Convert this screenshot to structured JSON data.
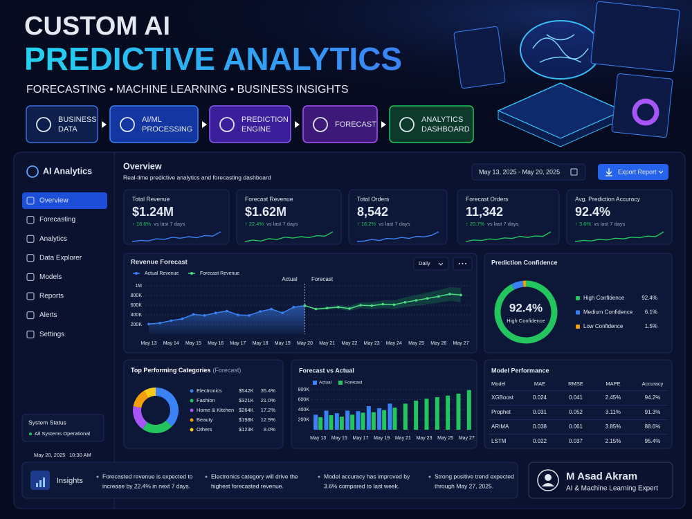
{
  "header": {
    "title": "CUSTOM AI",
    "subtitle": "PREDICTIVE ANALYTICS",
    "tagline": "FORECASTING  •  MACHINE LEARNING  •  BUSINESS INSIGHTS"
  },
  "pipeline": [
    [
      "BUSINESS",
      "DATA"
    ],
    [
      "AI/ML",
      "PROCESSING"
    ],
    [
      "PREDICTION",
      "ENGINE"
    ],
    [
      "FORECAST"
    ],
    [
      "ANALYTICS",
      "DASHBOARD"
    ]
  ],
  "sidebar": {
    "brand": "AI Analytics",
    "nav": [
      "Overview",
      "Forecasting",
      "Analytics",
      "Data Explorer",
      "Models",
      "Reports",
      "Alerts",
      "Settings"
    ],
    "active": 0,
    "status_title": "System Status",
    "status": "All Systems Operational",
    "date": "May 20, 2025",
    "time": "10:30 AM"
  },
  "overview": {
    "title": "Overview",
    "subtitle": "Real-time predictive analytics and forecasting dashboard",
    "date_range": "May 13, 2025 - May 20, 2025",
    "export": "Export Report"
  },
  "kpis": [
    {
      "label": "Total Revenue",
      "value": "$1.24M",
      "change": "↑ 18.6%",
      "note": "vs last 7 days",
      "color": "#3b82f6",
      "trend": [
        3,
        3.2,
        3.1,
        3.5,
        3.4,
        3.8,
        3.6,
        3.9,
        3.7,
        4.1,
        4.0,
        4.8
      ]
    },
    {
      "label": "Forecast Revenue",
      "value": "$1.62M",
      "change": "↑ 22.4%",
      "note": "vs last 7 days",
      "color": "#22c55e",
      "trend": [
        3,
        3.3,
        3.1,
        3.6,
        3.4,
        3.9,
        3.7,
        4.0,
        3.8,
        4.2,
        4.1,
        5.0
      ]
    },
    {
      "label": "Total Orders",
      "value": "8,542",
      "change": "↑ 16.2%",
      "note": "vs last 7 days",
      "color": "#3b82f6",
      "trend": [
        3,
        3.1,
        3.4,
        3.2,
        3.6,
        3.5,
        3.8,
        3.6,
        4.0,
        3.9,
        4.2,
        4.9
      ]
    },
    {
      "label": "Forecast Orders",
      "value": "11,342",
      "change": "↑ 20.7%",
      "note": "vs last 7 days",
      "color": "#22c55e",
      "trend": [
        3,
        3.3,
        3.2,
        3.5,
        3.4,
        3.7,
        3.6,
        4.0,
        3.8,
        4.1,
        4.0,
        4.9
      ]
    },
    {
      "label": "Avg. Prediction Accuracy",
      "value": "92.4%",
      "change": "↑ 3.6%",
      "note": "vs last 7 days",
      "color": "#22c55e",
      "trend": [
        3,
        3.2,
        3.1,
        3.4,
        3.3,
        3.6,
        3.5,
        3.8,
        3.7,
        4.0,
        3.9,
        4.8
      ]
    }
  ],
  "revenue_forecast": {
    "type": "line",
    "title": "Revenue Forecast",
    "period": "Daily",
    "annotations": [
      "Actual",
      "Forecast"
    ],
    "categories": [
      "May 13",
      null,
      "May 14",
      null,
      "May 15",
      null,
      "May 16",
      null,
      "May 17",
      null,
      "May 18",
      null,
      "May 19",
      null,
      "May 20",
      null,
      "May 21",
      null,
      "May 22",
      null,
      "May 23",
      null,
      "May 24",
      null,
      "May 25",
      null,
      "May 26",
      null,
      "May 27"
    ],
    "series": [
      {
        "name": "Actual Revenue",
        "color": "#3b82f6",
        "values": [
          210000,
          230000,
          280000,
          320000,
          410000,
          390000,
          440000,
          480000,
          400000,
          390000,
          470000,
          520000,
          440000,
          560000,
          590000,
          null,
          null,
          null,
          null,
          null,
          null,
          null,
          null,
          null,
          null,
          null,
          null,
          null,
          null
        ]
      },
      {
        "name": "Forecast Revenue",
        "color": "#4ade80",
        "values": [
          null,
          null,
          null,
          null,
          null,
          null,
          null,
          null,
          null,
          null,
          null,
          null,
          null,
          null,
          590000,
          520000,
          540000,
          560000,
          530000,
          600000,
          590000,
          620000,
          610000,
          660000,
          700000,
          740000,
          780000,
          830000,
          810000
        ]
      }
    ],
    "band": {
      "color": "#22c55e",
      "upper": [
        null,
        null,
        null,
        null,
        null,
        null,
        null,
        null,
        null,
        null,
        null,
        null,
        null,
        null,
        590000,
        540000,
        570000,
        600000,
        580000,
        660000,
        660000,
        700000,
        700000,
        760000,
        810000,
        860000,
        910000,
        970000,
        960000
      ],
      "lower": [
        null,
        null,
        null,
        null,
        null,
        null,
        null,
        null,
        null,
        null,
        null,
        null,
        null,
        null,
        590000,
        500000,
        510000,
        520000,
        480000,
        540000,
        520000,
        540000,
        520000,
        560000,
        590000,
        620000,
        650000,
        690000,
        660000
      ]
    },
    "ylim": [
      0,
      1000000
    ],
    "yticks": [
      {
        "value": 200000,
        "label": "200K"
      },
      {
        "value": 400000,
        "label": "400K"
      },
      {
        "value": 600000,
        "label": "600K"
      },
      {
        "value": 800000,
        "label": "800K"
      },
      {
        "value": 1000000,
        "label": "1M"
      }
    ],
    "grid": true
  },
  "confidence": {
    "type": "donut",
    "title": "Prediction Confidence",
    "center_value": "92.4%",
    "center_label": "High Confidence",
    "names": [
      "High Confidence",
      "Medium Confidence",
      "Low Confidence"
    ],
    "values": [
      92.4,
      6.1,
      1.5
    ],
    "value_labels": [
      "92.4%",
      "6.1%",
      "1.5%"
    ],
    "colors": [
      "#22c55e",
      "#3b82f6",
      "#f59e0b"
    ]
  },
  "top_categories": {
    "type": "donut",
    "title": "Top Performing Categories",
    "title_note": "(Forecast)",
    "names": [
      "Electronics",
      "Fashion",
      "Home & Kitchen",
      "Beauty",
      "Others"
    ],
    "revenue": [
      542000,
      321000,
      264000,
      198000,
      123000
    ],
    "revenue_labels": [
      "$542K",
      "$321K",
      "$264K",
      "$198K",
      "$123K"
    ],
    "values": [
      35.4,
      21.0,
      17.2,
      12.9,
      8.0
    ],
    "value_labels": [
      "35.4%",
      "21.0%",
      "17.2%",
      "12.9%",
      "8.0%"
    ],
    "colors": [
      "#3b82f6",
      "#22c55e",
      "#a855f7",
      "#f59e0b",
      "#facc15"
    ]
  },
  "forecast_vs_actual": {
    "type": "bar",
    "title": "Forecast vs Actual",
    "categories": [
      "May 13",
      null,
      "May 15",
      null,
      "May 17",
      null,
      "May 19",
      null,
      "May 21",
      null,
      "May 23",
      null,
      "May 25",
      null,
      "May 27"
    ],
    "series": [
      {
        "name": "Actual",
        "color": "#3b82f6",
        "values": [
          300000,
          380000,
          330000,
          380000,
          370000,
          470000,
          430000,
          520000,
          null,
          null,
          null,
          null,
          null,
          null,
          null
        ]
      },
      {
        "name": "Forecast",
        "color": "#22c55e",
        "values": [
          250000,
          290000,
          260000,
          300000,
          340000,
          350000,
          390000,
          440000,
          520000,
          580000,
          620000,
          650000,
          680000,
          720000,
          790000
        ]
      }
    ],
    "ylim": [
      0,
      800000
    ],
    "yticks": [
      {
        "value": 200000,
        "label": "200K"
      },
      {
        "value": 400000,
        "label": "400K"
      },
      {
        "value": 600000,
        "label": "600K"
      },
      {
        "value": 800000,
        "label": "800K"
      }
    ]
  },
  "model_performance": {
    "title": "Model Performance",
    "headers": [
      "Model",
      "MAE",
      "RMSE",
      "MAPE",
      "Accuracy"
    ],
    "rows": [
      [
        "XGBoost",
        "0.024",
        "0.041",
        "2.45%",
        "94.2%"
      ],
      [
        "Prophet",
        "0.031",
        "0.052",
        "3.11%",
        "91.3%"
      ],
      [
        "ARIMA",
        "0.038",
        "0.061",
        "3.85%",
        "88.6%"
      ],
      [
        "LSTM",
        "0.022",
        "0.037",
        "2.15%",
        "95.4%"
      ]
    ]
  },
  "insights": {
    "title": "Insights",
    "items": [
      [
        "Forecasted revenue is expected to",
        "increase by 22.4% in next 7 days."
      ],
      [
        "Electronics category will drive the",
        "highest forecasted revenue."
      ],
      [
        "Model accuracy has improved by",
        "3.6% compared to last week."
      ],
      [
        "Strong positive trend expected",
        "through May 27, 2025."
      ]
    ]
  },
  "author": {
    "name": "M Asad Akram",
    "role": "AI & Machine Learning Expert"
  }
}
